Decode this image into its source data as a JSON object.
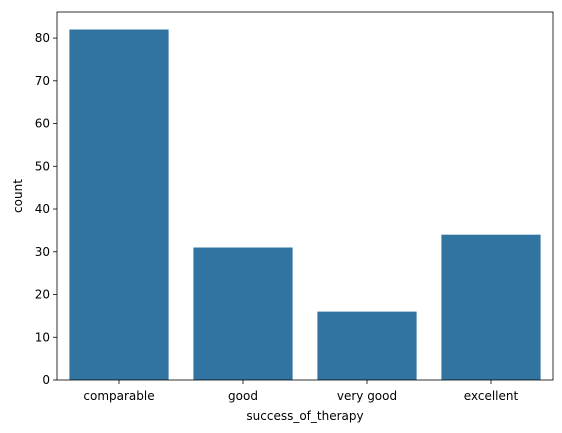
{
  "chart_data": {
    "type": "bar",
    "categories": [
      "comparable",
      "good",
      "very good",
      "excellent"
    ],
    "values": [
      82,
      31,
      16,
      34
    ],
    "xlabel": "success_of_therapy",
    "ylabel": "count",
    "ylim": [
      0,
      86.1
    ],
    "yticks": [
      0,
      10,
      20,
      30,
      40,
      50,
      60,
      70,
      80
    ],
    "grid": false,
    "bar_color": "#3274a1"
  }
}
